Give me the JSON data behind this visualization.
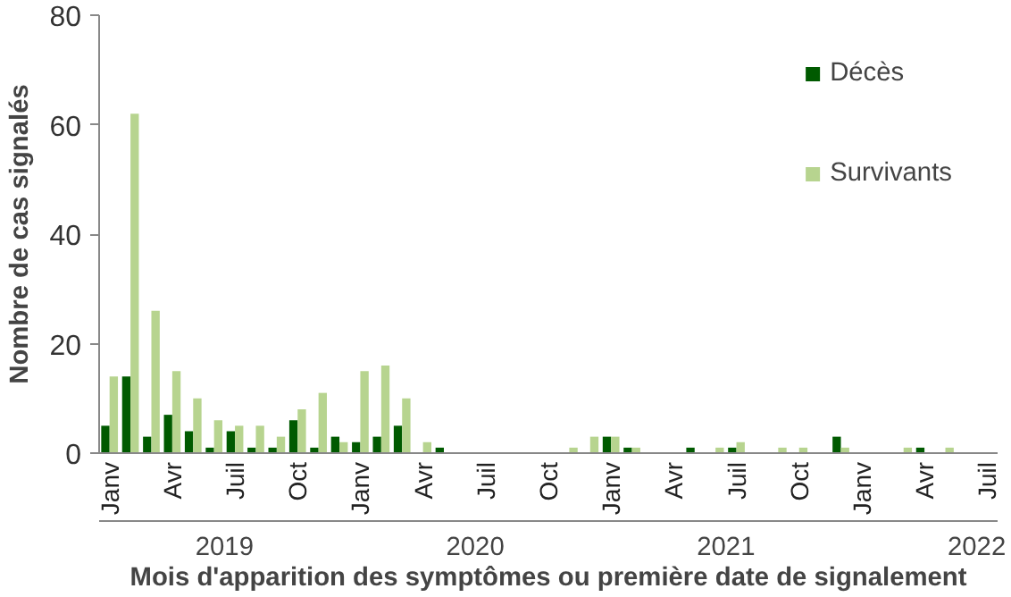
{
  "chart_data": {
    "type": "bar",
    "xlabel": "Mois d'apparition des symptômes ou première date de signalement",
    "ylabel": "Nombre de cas signalés",
    "categories": [
      "Janv",
      null,
      null,
      "Avr",
      null,
      null,
      "Juil",
      null,
      null,
      "Oct",
      null,
      null,
      "Janv",
      null,
      null,
      "Avr",
      null,
      null,
      "Juil",
      null,
      null,
      "Oct",
      null,
      null,
      "Janv",
      null,
      null,
      "Avr",
      null,
      null,
      "Juil",
      null,
      null,
      "Oct",
      null,
      null,
      "Janv",
      null,
      null,
      "Avr",
      null,
      null,
      "Juil"
    ],
    "series": [
      {
        "name": "Décès",
        "color": "#005a00",
        "values": [
          5,
          14,
          3,
          7,
          4,
          1,
          4,
          1,
          1,
          6,
          1,
          3,
          2,
          3,
          5,
          0,
          1,
          0,
          0,
          0,
          0,
          0,
          0,
          0,
          3,
          1,
          0,
          0,
          1,
          0,
          1,
          0,
          0,
          0,
          0,
          3,
          0,
          0,
          0,
          1,
          0,
          0,
          0
        ]
      },
      {
        "name": "Survivants",
        "color": "#b7d48f",
        "values": [
          14,
          62,
          26,
          15,
          10,
          6,
          5,
          5,
          3,
          8,
          11,
          2,
          15,
          16,
          10,
          2,
          0,
          0,
          0,
          0,
          0,
          0,
          1,
          3,
          3,
          1,
          0,
          0,
          0,
          1,
          2,
          0,
          1,
          1,
          0,
          1,
          0,
          0,
          1,
          0,
          1,
          0,
          0
        ]
      }
    ],
    "ylim": [
      0,
      80
    ],
    "yticks": [
      0,
      20,
      40,
      60,
      80
    ],
    "grid": false,
    "legend": "top right",
    "annotations": [
      "2019",
      "2020",
      "2021",
      "2022"
    ]
  }
}
